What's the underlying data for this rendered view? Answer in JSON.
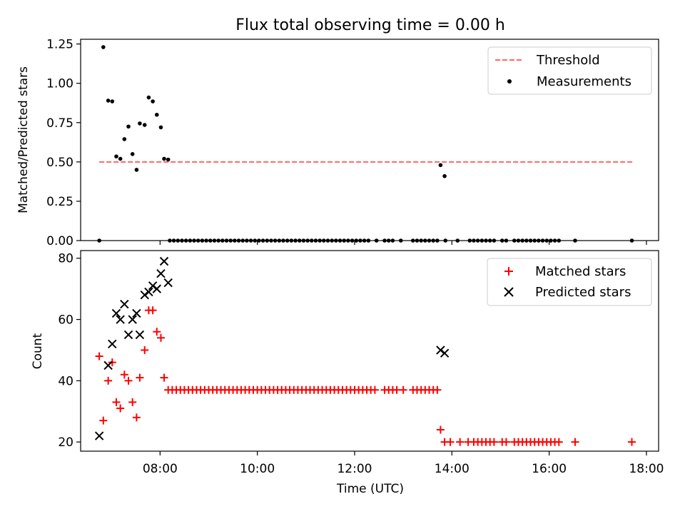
{
  "title": "Flux total observing time = 0.00 h",
  "chart_data": [
    {
      "type": "scatter",
      "title": "Flux total observing time = 0.00 h",
      "xlabel": "",
      "ylabel": "Matched/Predicted stars",
      "xlim": [
        "06:22",
        "18:15"
      ],
      "ylim": [
        0,
        1.28
      ],
      "y_ticks": [
        "0.00",
        "0.25",
        "0.50",
        "0.75",
        "1.00",
        "1.25"
      ],
      "y_tick_values": [
        0,
        0.25,
        0.5,
        0.75,
        1.0,
        1.25
      ],
      "x_tick_values": [
        "08:00",
        "10:00",
        "12:00",
        "14:00",
        "16:00",
        "18:00"
      ],
      "legend": {
        "placement": "top-right",
        "entries": [
          "Threshold",
          "Measurements"
        ]
      },
      "threshold": {
        "name": "Threshold",
        "value": 0.5,
        "x_start": "06:45",
        "x_end": "17:45",
        "color": "#ff6666",
        "style": "dashed"
      },
      "series": [
        {
          "name": "Measurements",
          "color": "#000000",
          "marker": "dot",
          "points": [
            [
              "06:45",
              0.0
            ],
            [
              "06:50",
              1.23
            ],
            [
              "06:56",
              0.89
            ],
            [
              "07:01",
              0.885
            ],
            [
              "07:06",
              0.535
            ],
            [
              "07:11",
              0.52
            ],
            [
              "07:16",
              0.645
            ],
            [
              "07:21",
              0.725
            ],
            [
              "07:26",
              0.55
            ],
            [
              "07:31",
              0.45
            ],
            [
              "07:35",
              0.745
            ],
            [
              "07:41",
              0.735
            ],
            [
              "07:46",
              0.91
            ],
            [
              "07:51",
              0.885
            ],
            [
              "07:56",
              0.8
            ],
            [
              "08:01",
              0.72
            ],
            [
              "08:05",
              0.52
            ],
            [
              "08:10",
              0.515
            ],
            [
              "08:12",
              0.0
            ],
            [
              "08:17",
              0.0
            ],
            [
              "08:22",
              0.0
            ],
            [
              "08:27",
              0.0
            ],
            [
              "08:32",
              0.0
            ],
            [
              "08:37",
              0.0
            ],
            [
              "08:42",
              0.0
            ],
            [
              "08:47",
              0.0
            ],
            [
              "08:52",
              0.0
            ],
            [
              "08:57",
              0.0
            ],
            [
              "09:02",
              0.0
            ],
            [
              "09:07",
              0.0
            ],
            [
              "09:12",
              0.0
            ],
            [
              "09:17",
              0.0
            ],
            [
              "09:22",
              0.0
            ],
            [
              "09:27",
              0.0
            ],
            [
              "09:32",
              0.0
            ],
            [
              "09:37",
              0.0
            ],
            [
              "09:42",
              0.0
            ],
            [
              "09:47",
              0.0
            ],
            [
              "09:52",
              0.0
            ],
            [
              "09:57",
              0.0
            ],
            [
              "10:02",
              0.0
            ],
            [
              "10:07",
              0.0
            ],
            [
              "10:12",
              0.0
            ],
            [
              "10:17",
              0.0
            ],
            [
              "10:22",
              0.0
            ],
            [
              "10:27",
              0.0
            ],
            [
              "10:32",
              0.0
            ],
            [
              "10:37",
              0.0
            ],
            [
              "10:42",
              0.0
            ],
            [
              "10:47",
              0.0
            ],
            [
              "10:52",
              0.0
            ],
            [
              "10:57",
              0.0
            ],
            [
              "11:02",
              0.0
            ],
            [
              "11:07",
              0.0
            ],
            [
              "11:12",
              0.0
            ],
            [
              "11:17",
              0.0
            ],
            [
              "11:22",
              0.0
            ],
            [
              "11:27",
              0.0
            ],
            [
              "11:32",
              0.0
            ],
            [
              "11:37",
              0.0
            ],
            [
              "11:42",
              0.0
            ],
            [
              "11:47",
              0.0
            ],
            [
              "11:52",
              0.0
            ],
            [
              "11:57",
              0.0
            ],
            [
              "12:02",
              0.0
            ],
            [
              "12:07",
              0.0
            ],
            [
              "12:12",
              0.0
            ],
            [
              "12:17",
              0.0
            ],
            [
              "12:27",
              0.0
            ],
            [
              "12:37",
              0.0
            ],
            [
              "12:42",
              0.0
            ],
            [
              "12:47",
              0.0
            ],
            [
              "12:57",
              0.0
            ],
            [
              "13:12",
              0.0
            ],
            [
              "13:17",
              0.0
            ],
            [
              "13:22",
              0.0
            ],
            [
              "13:27",
              0.0
            ],
            [
              "13:32",
              0.0
            ],
            [
              "13:37",
              0.0
            ],
            [
              "13:42",
              0.0
            ],
            [
              "13:46",
              0.48
            ],
            [
              "13:51",
              0.41
            ],
            [
              "13:52",
              0.0
            ],
            [
              "14:07",
              0.0
            ],
            [
              "14:22",
              0.0
            ],
            [
              "14:27",
              0.0
            ],
            [
              "14:32",
              0.0
            ],
            [
              "14:37",
              0.0
            ],
            [
              "14:42",
              0.0
            ],
            [
              "14:47",
              0.0
            ],
            [
              "14:52",
              0.0
            ],
            [
              "15:02",
              0.0
            ],
            [
              "15:07",
              0.0
            ],
            [
              "15:17",
              0.0
            ],
            [
              "15:22",
              0.0
            ],
            [
              "15:27",
              0.0
            ],
            [
              "15:32",
              0.0
            ],
            [
              "15:37",
              0.0
            ],
            [
              "15:42",
              0.0
            ],
            [
              "15:47",
              0.0
            ],
            [
              "15:52",
              0.0
            ],
            [
              "15:57",
              0.0
            ],
            [
              "16:02",
              0.0
            ],
            [
              "16:07",
              0.0
            ],
            [
              "16:12",
              0.0
            ],
            [
              "16:32",
              0.0
            ],
            [
              "17:42",
              0.0
            ]
          ]
        }
      ]
    },
    {
      "type": "scatter",
      "title": "",
      "xlabel": "Time (UTC)",
      "ylabel": "Count",
      "xlim": [
        "06:22",
        "18:15"
      ],
      "ylim": [
        17,
        82.5
      ],
      "y_ticks": [
        "20",
        "40",
        "60",
        "80"
      ],
      "y_tick_values": [
        20,
        40,
        60,
        80
      ],
      "x_ticks": [
        "08:00",
        "10:00",
        "12:00",
        "14:00",
        "16:00",
        "18:00"
      ],
      "legend": {
        "placement": "top-right",
        "entries": [
          "Matched stars",
          "Predicted stars"
        ]
      },
      "series": [
        {
          "name": "Matched stars",
          "color": "#ff0000",
          "marker": "plus",
          "points": [
            [
              "06:45",
              48
            ],
            [
              "06:50",
              27
            ],
            [
              "06:56",
              40
            ],
            [
              "07:01",
              46
            ],
            [
              "07:06",
              33
            ],
            [
              "07:11",
              31
            ],
            [
              "07:16",
              42
            ],
            [
              "07:21",
              40
            ],
            [
              "07:26",
              33
            ],
            [
              "07:31",
              28
            ],
            [
              "07:35",
              41
            ],
            [
              "07:41",
              50
            ],
            [
              "07:46",
              63
            ],
            [
              "07:51",
              63
            ],
            [
              "07:56",
              56
            ],
            [
              "08:01",
              54
            ],
            [
              "08:05",
              41
            ],
            [
              "08:10",
              37
            ],
            [
              "08:15",
              37
            ],
            [
              "08:20",
              37
            ],
            [
              "08:25",
              37
            ],
            [
              "08:30",
              37
            ],
            [
              "08:35",
              37
            ],
            [
              "08:40",
              37
            ],
            [
              "08:45",
              37
            ],
            [
              "08:50",
              37
            ],
            [
              "08:55",
              37
            ],
            [
              "09:00",
              37
            ],
            [
              "09:05",
              37
            ],
            [
              "09:10",
              37
            ],
            [
              "09:15",
              37
            ],
            [
              "09:20",
              37
            ],
            [
              "09:25",
              37
            ],
            [
              "09:30",
              37
            ],
            [
              "09:35",
              37
            ],
            [
              "09:40",
              37
            ],
            [
              "09:45",
              37
            ],
            [
              "09:50",
              37
            ],
            [
              "09:55",
              37
            ],
            [
              "10:00",
              37
            ],
            [
              "10:05",
              37
            ],
            [
              "10:10",
              37
            ],
            [
              "10:15",
              37
            ],
            [
              "10:20",
              37
            ],
            [
              "10:25",
              37
            ],
            [
              "10:30",
              37
            ],
            [
              "10:35",
              37
            ],
            [
              "10:40",
              37
            ],
            [
              "10:45",
              37
            ],
            [
              "10:50",
              37
            ],
            [
              "10:55",
              37
            ],
            [
              "11:00",
              37
            ],
            [
              "11:05",
              37
            ],
            [
              "11:10",
              37
            ],
            [
              "11:15",
              37
            ],
            [
              "11:20",
              37
            ],
            [
              "11:25",
              37
            ],
            [
              "11:30",
              37
            ],
            [
              "11:35",
              37
            ],
            [
              "11:40",
              37
            ],
            [
              "11:45",
              37
            ],
            [
              "11:50",
              37
            ],
            [
              "11:55",
              37
            ],
            [
              "12:00",
              37
            ],
            [
              "12:05",
              37
            ],
            [
              "12:10",
              37
            ],
            [
              "12:15",
              37
            ],
            [
              "12:20",
              37
            ],
            [
              "12:25",
              37
            ],
            [
              "12:37",
              37
            ],
            [
              "12:42",
              37
            ],
            [
              "12:47",
              37
            ],
            [
              "12:52",
              37
            ],
            [
              "13:00",
              37
            ],
            [
              "13:12",
              37
            ],
            [
              "13:17",
              37
            ],
            [
              "13:22",
              37
            ],
            [
              "13:27",
              37
            ],
            [
              "13:32",
              37
            ],
            [
              "13:37",
              37
            ],
            [
              "13:42",
              37
            ],
            [
              "13:46",
              24
            ],
            [
              "13:51",
              20
            ],
            [
              "13:58",
              20
            ],
            [
              "14:10",
              20
            ],
            [
              "14:20",
              20
            ],
            [
              "14:27",
              20
            ],
            [
              "14:32",
              20
            ],
            [
              "14:37",
              20
            ],
            [
              "14:42",
              20
            ],
            [
              "14:47",
              20
            ],
            [
              "14:52",
              20
            ],
            [
              "15:02",
              20
            ],
            [
              "15:07",
              20
            ],
            [
              "15:17",
              20
            ],
            [
              "15:22",
              20
            ],
            [
              "15:27",
              20
            ],
            [
              "15:32",
              20
            ],
            [
              "15:37",
              20
            ],
            [
              "15:42",
              20
            ],
            [
              "15:47",
              20
            ],
            [
              "15:52",
              20
            ],
            [
              "15:57",
              20
            ],
            [
              "16:02",
              20
            ],
            [
              "16:07",
              20
            ],
            [
              "16:12",
              20
            ],
            [
              "16:32",
              20
            ],
            [
              "17:42",
              20
            ]
          ]
        },
        {
          "name": "Predicted stars",
          "color": "#000000",
          "marker": "x",
          "points": [
            [
              "06:45",
              22
            ],
            [
              "06:56",
              45
            ],
            [
              "07:01",
              52
            ],
            [
              "07:06",
              62
            ],
            [
              "07:11",
              60
            ],
            [
              "07:16",
              65
            ],
            [
              "07:21",
              55
            ],
            [
              "07:26",
              60
            ],
            [
              "07:31",
              62
            ],
            [
              "07:35",
              55
            ],
            [
              "07:41",
              68
            ],
            [
              "07:46",
              69
            ],
            [
              "07:51",
              71
            ],
            [
              "07:56",
              70
            ],
            [
              "08:01",
              75
            ],
            [
              "08:05",
              79
            ],
            [
              "08:10",
              72
            ],
            [
              "13:46",
              50
            ],
            [
              "13:51",
              49
            ]
          ]
        }
      ]
    }
  ]
}
